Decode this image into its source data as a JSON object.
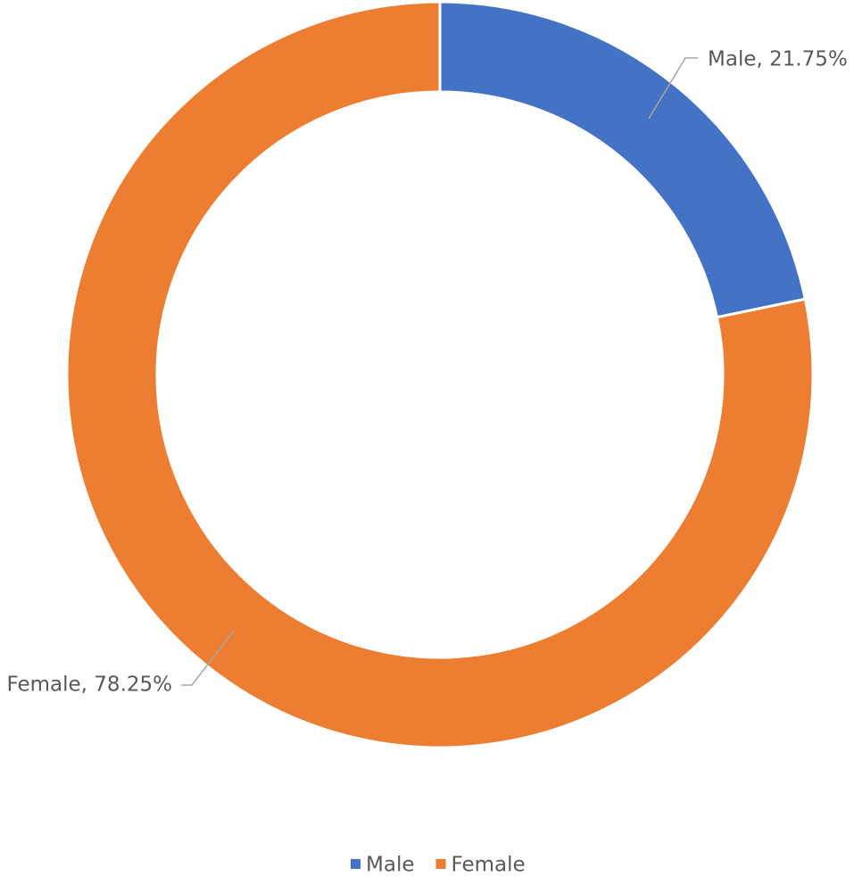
{
  "chart_data": {
    "type": "donut",
    "categories": [
      "Male",
      "Female"
    ],
    "values": [
      21.75,
      78.25
    ],
    "value_labels": [
      "Male, 21.75%",
      "Female, 78.25%"
    ],
    "colors": [
      "#4472c4",
      "#ed7d31"
    ],
    "legend": "bottom"
  }
}
